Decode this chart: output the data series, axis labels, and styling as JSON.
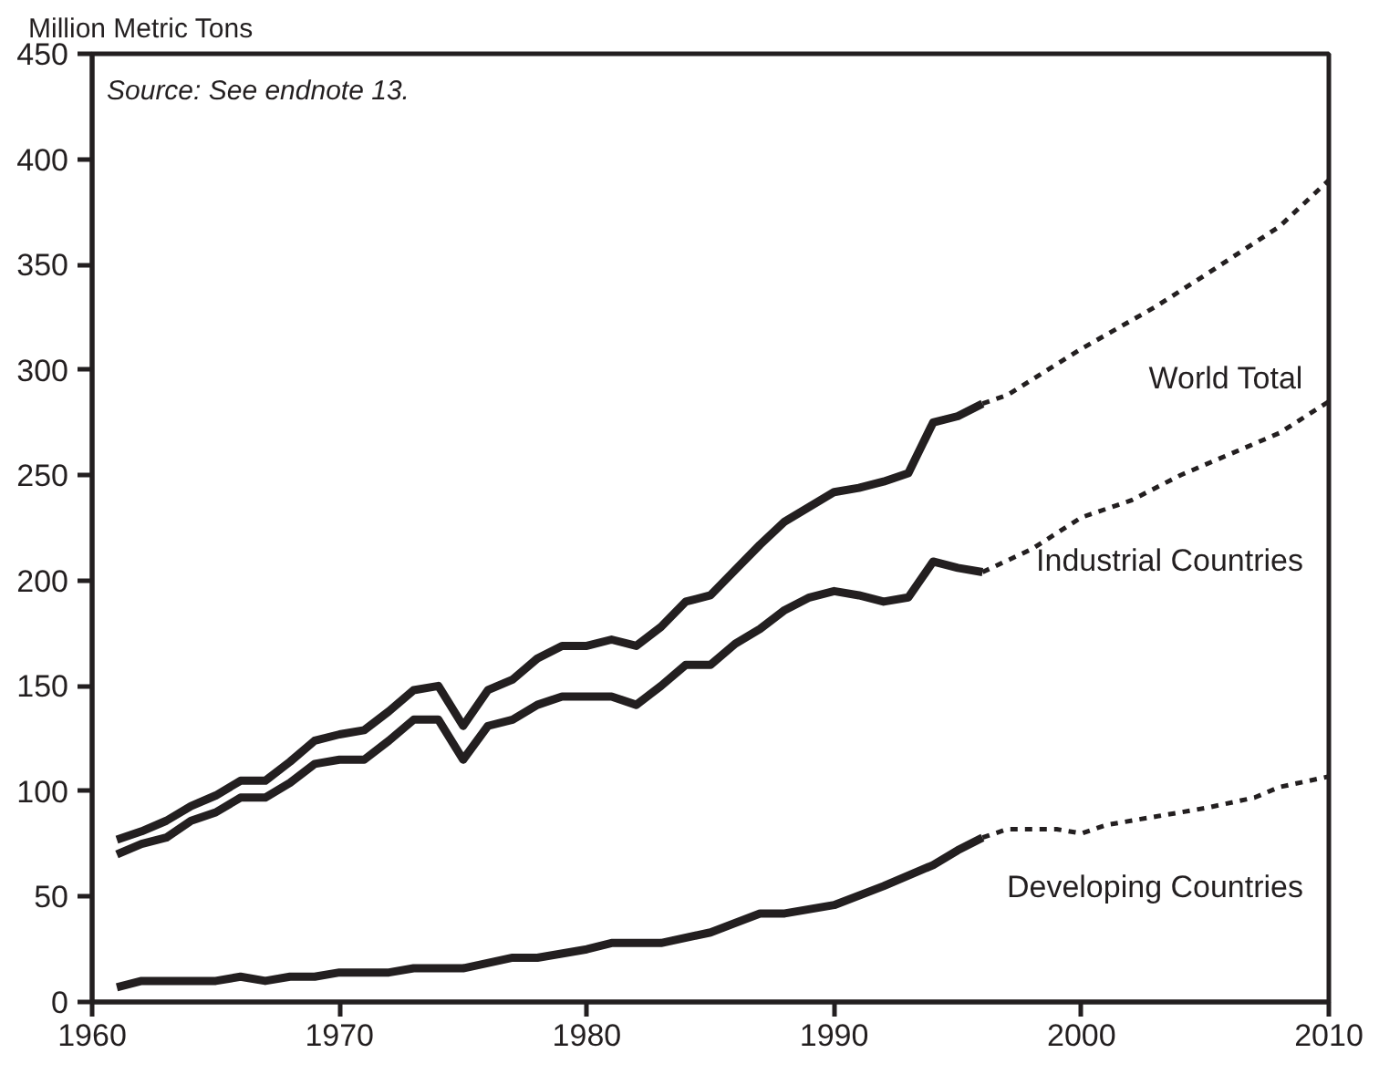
{
  "chart_data": {
    "type": "line",
    "ylabel": "Million Metric Tons",
    "xlim": [
      1960,
      2010
    ],
    "ylim": [
      0,
      450
    ],
    "xticks": [
      1960,
      1970,
      1980,
      1990,
      2000,
      2010
    ],
    "yticks": [
      0,
      50,
      100,
      150,
      200,
      250,
      300,
      350,
      400,
      450
    ],
    "grid": false,
    "marker": "none",
    "annotations": [
      "Source: See endnote 13."
    ],
    "series": [
      {
        "name": "World Total",
        "color": "#231f20",
        "line_style": "solid",
        "x": [
          1961,
          1962,
          1963,
          1964,
          1965,
          1966,
          1967,
          1968,
          1969,
          1970,
          1971,
          1972,
          1973,
          1974,
          1975,
          1976,
          1977,
          1978,
          1979,
          1980,
          1981,
          1982,
          1983,
          1984,
          1985,
          1986,
          1987,
          1988,
          1989,
          1990,
          1991,
          1992,
          1993,
          1994,
          1995,
          1996
        ],
        "values": [
          77,
          81,
          86,
          93,
          98,
          105,
          105,
          114,
          124,
          127,
          129,
          138,
          148,
          150,
          131,
          148,
          153,
          163,
          169,
          169,
          172,
          169,
          178,
          190,
          193,
          205,
          217,
          228,
          235,
          242,
          244,
          247,
          251,
          275,
          278,
          284
        ]
      },
      {
        "color": "#231f20",
        "line_style": "dashed",
        "x": [
          1996,
          1997,
          2000,
          2003,
          2005,
          2008,
          2010
        ],
        "values": [
          284,
          288,
          310,
          330,
          345,
          368,
          390
        ]
      },
      {
        "name": "Industrial Countries",
        "color": "#231f20",
        "line_style": "solid",
        "x": [
          1961,
          1962,
          1963,
          1964,
          1965,
          1966,
          1967,
          1968,
          1969,
          1970,
          1971,
          1972,
          1973,
          1974,
          1975,
          1976,
          1977,
          1978,
          1979,
          1980,
          1981,
          1982,
          1983,
          1984,
          1985,
          1986,
          1987,
          1988,
          1989,
          1990,
          1991,
          1992,
          1993,
          1994,
          1995,
          1996
        ],
        "values": [
          70,
          75,
          78,
          86,
          90,
          97,
          97,
          104,
          113,
          115,
          115,
          124,
          134,
          134,
          115,
          131,
          134,
          141,
          145,
          145,
          145,
          141,
          150,
          160,
          160,
          170,
          177,
          186,
          192,
          195,
          193,
          190,
          192,
          209,
          206,
          204
        ]
      },
      {
        "color": "#231f20",
        "line_style": "dashed",
        "x": [
          1996,
          1998,
          2000,
          2002,
          2004,
          2006,
          2008,
          2010
        ],
        "values": [
          204,
          215,
          230,
          238,
          250,
          260,
          270,
          285
        ]
      },
      {
        "name": "Developing Countries",
        "color": "#231f20",
        "line_style": "solid",
        "x": [
          1961,
          1962,
          1965,
          1966,
          1967,
          1968,
          1969,
          1970,
          1972,
          1973,
          1975,
          1977,
          1978,
          1980,
          1981,
          1983,
          1985,
          1987,
          1988,
          1990,
          1992,
          1994,
          1995,
          1996
        ],
        "values": [
          7,
          10,
          10,
          12,
          10,
          12,
          12,
          14,
          14,
          16,
          16,
          21,
          21,
          25,
          28,
          28,
          33,
          42,
          42,
          46,
          55,
          65,
          72,
          78
        ]
      },
      {
        "color": "#231f20",
        "line_style": "dashed",
        "x": [
          1996,
          1997,
          1999,
          2000,
          2001,
          2005,
          2007,
          2008,
          2010
        ],
        "values": [
          78,
          82,
          82,
          80,
          84,
          92,
          97,
          102,
          107
        ]
      }
    ]
  }
}
